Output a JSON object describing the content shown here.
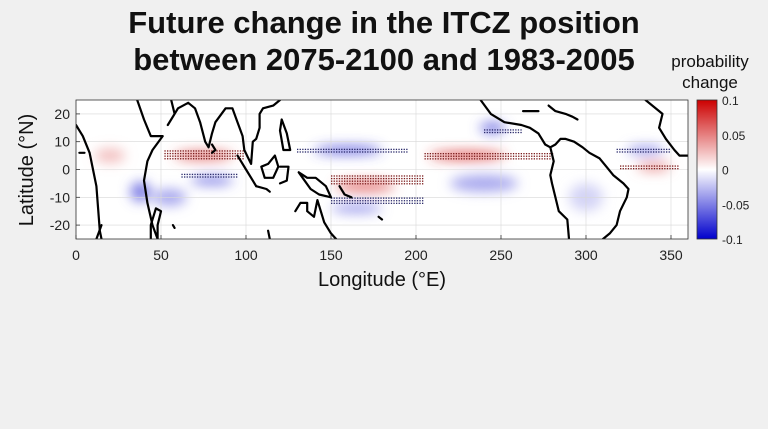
{
  "chart_data": {
    "type": "heatmap",
    "title_line1": "Future change in the ITCZ position",
    "title_line2": "between 2075-2100 and 1983-2005",
    "xlabel": "Longitude (°E)",
    "ylabel": "Latitude (°N)",
    "xlim": [
      0,
      360
    ],
    "ylim": [
      -25,
      25
    ],
    "x_ticks": [
      0,
      50,
      100,
      150,
      200,
      250,
      300,
      350
    ],
    "y_ticks": [
      20,
      10,
      0,
      -10,
      -20
    ],
    "grid": true,
    "colorbar": {
      "label_line1": "probability",
      "label_line2": "change",
      "min": -0.1,
      "max": 0.1,
      "ticks": [
        "0.1",
        "0.05",
        "0",
        "-0.05",
        "-0.1"
      ],
      "colormap": "blue-white-red",
      "neg_color": "#0000cc",
      "zero_color": "#ffffff",
      "pos_color": "#cc0000"
    },
    "anomalies": [
      {
        "lon": 20,
        "lat": 5,
        "value": 0.03,
        "lon_width": 18,
        "lat_width": 5
      },
      {
        "lon": 38,
        "lat": -8,
        "value": -0.06,
        "lon_width": 12,
        "lat_width": 7
      },
      {
        "lon": 75,
        "lat": 5,
        "value": 0.07,
        "lon_width": 35,
        "lat_width": 3
      },
      {
        "lon": 80,
        "lat": -4,
        "value": -0.06,
        "lon_width": 25,
        "lat_width": 3
      },
      {
        "lon": 55,
        "lat": -10,
        "value": -0.04,
        "lon_width": 20,
        "lat_width": 6
      },
      {
        "lon": 160,
        "lat": 7,
        "value": -0.07,
        "lon_width": 40,
        "lat_width": 3
      },
      {
        "lon": 170,
        "lat": -6,
        "value": 0.06,
        "lon_width": 35,
        "lat_width": 4
      },
      {
        "lon": 165,
        "lat": -14,
        "value": -0.05,
        "lon_width": 30,
        "lat_width": 3
      },
      {
        "lon": 230,
        "lat": 5,
        "value": 0.08,
        "lon_width": 45,
        "lat_width": 3
      },
      {
        "lon": 240,
        "lat": -5,
        "value": -0.04,
        "lon_width": 40,
        "lat_width": 6
      },
      {
        "lon": 245,
        "lat": 15,
        "value": -0.06,
        "lon_width": 15,
        "lat_width": 4
      },
      {
        "lon": 340,
        "lat": 1,
        "value": 0.05,
        "lon_width": 20,
        "lat_width": 3
      },
      {
        "lon": 335,
        "lat": 7,
        "value": -0.05,
        "lon_width": 22,
        "lat_width": 3
      },
      {
        "lon": 300,
        "lat": -10,
        "value": -0.02,
        "lon_width": 20,
        "lat_width": 10
      }
    ],
    "stipple_bands": [
      {
        "lon_start": 52,
        "lon_end": 98,
        "lat": 5.5,
        "rows": 4,
        "color": "#7a1a1a"
      },
      {
        "lon_start": 62,
        "lon_end": 95,
        "lat": -2,
        "rows": 2,
        "color": "#2a2a6a"
      },
      {
        "lon_start": 130,
        "lon_end": 195,
        "lat": 7,
        "rows": 2,
        "color": "#2a2a6a"
      },
      {
        "lon_start": 150,
        "lon_end": 205,
        "lat": -3.5,
        "rows": 4,
        "color": "#7a1a1a"
      },
      {
        "lon_start": 150,
        "lon_end": 205,
        "lat": -11,
        "rows": 3,
        "color": "#2a2a6a"
      },
      {
        "lon_start": 205,
        "lon_end": 280,
        "lat": 5,
        "rows": 3,
        "color": "#7a1a1a"
      },
      {
        "lon_start": 240,
        "lon_end": 262,
        "lat": 14,
        "rows": 2,
        "color": "#2a2a6a"
      },
      {
        "lon_start": 318,
        "lon_end": 350,
        "lat": 7,
        "rows": 2,
        "color": "#2a2a6a"
      },
      {
        "lon_start": 320,
        "lon_end": 355,
        "lat": 1,
        "rows": 2,
        "color": "#7a1a1a"
      }
    ],
    "coastlines": [
      [
        [
          0,
          16
        ],
        [
          4,
          12
        ],
        [
          8,
          6
        ],
        [
          10,
          0
        ],
        [
          12,
          -6
        ],
        [
          13,
          -14
        ],
        [
          14,
          -22
        ],
        [
          15,
          -25
        ]
      ],
      [
        [
          48,
          -25
        ],
        [
          45,
          -20
        ],
        [
          42,
          -12
        ],
        [
          40,
          -4
        ],
        [
          42,
          3
        ],
        [
          45,
          7
        ],
        [
          51,
          12
        ],
        [
          44,
          12
        ],
        [
          40,
          18
        ],
        [
          36,
          25
        ]
      ],
      [
        [
          48,
          -25
        ],
        [
          48,
          -20
        ],
        [
          50,
          -15
        ],
        [
          47,
          -14
        ],
        [
          44,
          -20
        ],
        [
          44,
          -25
        ]
      ],
      [
        [
          56,
          25
        ],
        [
          58,
          20
        ],
        [
          54,
          16
        ],
        [
          60,
          22
        ],
        [
          66,
          24
        ],
        [
          70,
          22
        ],
        [
          73,
          17
        ],
        [
          76,
          10
        ],
        [
          78,
          8
        ],
        [
          80,
          13
        ],
        [
          82,
          17
        ],
        [
          88,
          22
        ],
        [
          92,
          22
        ],
        [
          95,
          17
        ],
        [
          98,
          12
        ],
        [
          99,
          7
        ],
        [
          103,
          2
        ],
        [
          104,
          10
        ],
        [
          106,
          11
        ],
        [
          108,
          15
        ],
        [
          108,
          20
        ],
        [
          110,
          22
        ],
        [
          116,
          23
        ],
        [
          120,
          25
        ]
      ],
      [
        [
          95,
          5
        ],
        [
          100,
          0
        ],
        [
          104,
          -4
        ],
        [
          106,
          -6
        ]
      ],
      [
        [
          109,
          1
        ],
        [
          113,
          2
        ],
        [
          117,
          5
        ],
        [
          119,
          1
        ],
        [
          116,
          -3
        ],
        [
          111,
          -3
        ],
        [
          109,
          1
        ]
      ],
      [
        [
          106,
          -6
        ],
        [
          112,
          -7
        ],
        [
          114,
          -8
        ]
      ],
      [
        [
          120,
          1
        ],
        [
          125,
          1
        ],
        [
          124,
          -4
        ],
        [
          120,
          -5
        ]
      ],
      [
        [
          121,
          18
        ],
        [
          124,
          13
        ],
        [
          126,
          7
        ],
        [
          122,
          7
        ],
        [
          120,
          14
        ],
        [
          121,
          18
        ]
      ],
      [
        [
          131,
          -1
        ],
        [
          136,
          -3
        ],
        [
          141,
          -3
        ],
        [
          147,
          -6
        ],
        [
          150,
          -10
        ],
        [
          143,
          -9
        ],
        [
          138,
          -7
        ],
        [
          131,
          -1
        ]
      ],
      [
        [
          113,
          -22
        ],
        [
          114,
          -25
        ]
      ],
      [
        [
          129,
          -15
        ],
        [
          132,
          -12
        ],
        [
          136,
          -12
        ],
        [
          136,
          -15
        ],
        [
          140,
          -17
        ],
        [
          142,
          -11
        ],
        [
          144,
          -15
        ],
        [
          146,
          -19
        ],
        [
          150,
          -23
        ],
        [
          153,
          -25
        ]
      ],
      [
        [
          238,
          25
        ],
        [
          244,
          20
        ],
        [
          252,
          17
        ],
        [
          262,
          16
        ],
        [
          267,
          15
        ],
        [
          272,
          13
        ],
        [
          276,
          9
        ],
        [
          279,
          8
        ],
        [
          282,
          9
        ],
        [
          285,
          11
        ],
        [
          288,
          11
        ],
        [
          293,
          10
        ],
        [
          298,
          8
        ],
        [
          302,
          6
        ],
        [
          308,
          4
        ],
        [
          312,
          1
        ],
        [
          316,
          -2
        ],
        [
          322,
          -5
        ],
        [
          325,
          -7
        ],
        [
          324,
          -10
        ],
        [
          320,
          -15
        ],
        [
          318,
          -20
        ],
        [
          314,
          -23
        ],
        [
          310,
          -25
        ]
      ],
      [
        [
          279,
          8
        ],
        [
          281,
          3
        ],
        [
          279,
          -2
        ],
        [
          280,
          -5
        ],
        [
          282,
          -10
        ],
        [
          284,
          -15
        ],
        [
          289,
          -18
        ],
        [
          290,
          -25
        ]
      ],
      [
        [
          263,
          21
        ],
        [
          267,
          21
        ],
        [
          272,
          21
        ]
      ],
      [
        [
          278,
          23
        ],
        [
          282,
          21
        ],
        [
          288,
          20
        ],
        [
          292,
          19
        ],
        [
          295,
          18
        ]
      ],
      [
        [
          335,
          25
        ],
        [
          345,
          20
        ],
        [
          343,
          15
        ],
        [
          347,
          11
        ],
        [
          352,
          7
        ],
        [
          355,
          5
        ],
        [
          360,
          5
        ]
      ],
      [
        [
          2,
          6
        ],
        [
          5,
          6
        ]
      ],
      [
        [
          15,
          -20
        ],
        [
          12,
          -25
        ]
      ],
      [
        [
          57,
          -20
        ],
        [
          58,
          -21
        ]
      ],
      [
        [
          80,
          9
        ],
        [
          82,
          7
        ],
        [
          80,
          6
        ]
      ],
      [
        [
          155,
          -6
        ],
        [
          158,
          -9
        ],
        [
          162,
          -10
        ]
      ],
      [
        [
          178,
          -17
        ],
        [
          180,
          -18
        ]
      ]
    ]
  }
}
